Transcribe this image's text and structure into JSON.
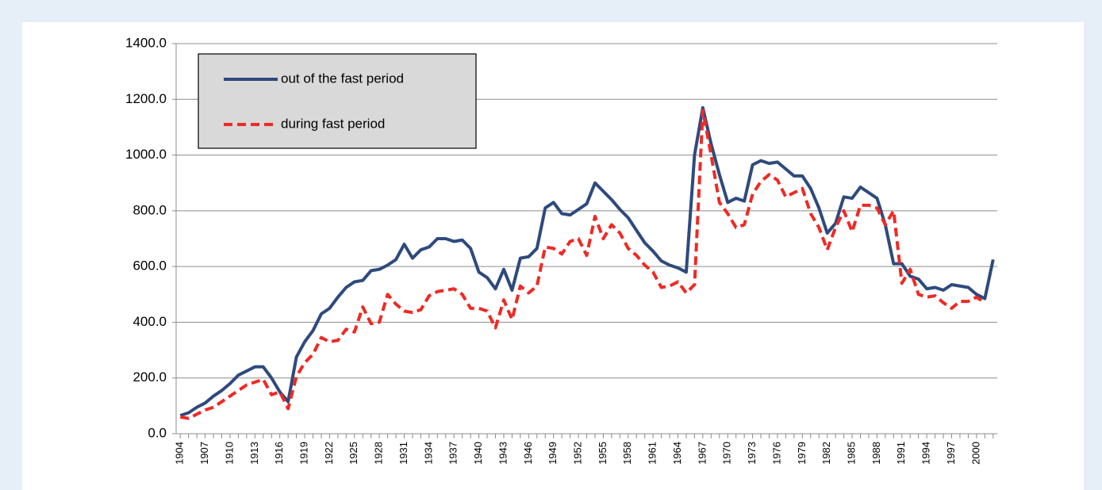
{
  "chart_data": {
    "type": "line",
    "x": [
      1904,
      1905,
      1906,
      1907,
      1908,
      1909,
      1910,
      1911,
      1912,
      1913,
      1914,
      1915,
      1916,
      1917,
      1918,
      1919,
      1920,
      1921,
      1922,
      1923,
      1924,
      1925,
      1926,
      1927,
      1928,
      1929,
      1930,
      1931,
      1932,
      1933,
      1934,
      1935,
      1936,
      1937,
      1938,
      1939,
      1940,
      1941,
      1942,
      1943,
      1944,
      1945,
      1946,
      1947,
      1948,
      1949,
      1950,
      1951,
      1952,
      1953,
      1954,
      1955,
      1956,
      1957,
      1958,
      1959,
      1960,
      1961,
      1962,
      1963,
      1964,
      1965,
      1966,
      1967,
      1968,
      1969,
      1970,
      1971,
      1972,
      1973,
      1974,
      1975,
      1976,
      1977,
      1978,
      1979,
      1980,
      1981,
      1982,
      1983,
      1984,
      1985,
      1986,
      1987,
      1988,
      1989,
      1990,
      1991,
      1992,
      1993,
      1994,
      1995,
      1996,
      1997,
      1998,
      1999,
      2000,
      2001,
      2002
    ],
    "series": [
      {
        "name": "out of the fast period",
        "color": "#2e4a7d",
        "dash": "solid",
        "values": [
          65,
          75,
          95,
          110,
          135,
          155,
          180,
          210,
          225,
          240,
          240,
          200,
          150,
          115,
          275,
          330,
          370,
          430,
          450,
          490,
          525,
          545,
          550,
          585,
          590,
          605,
          625,
          680,
          630,
          660,
          670,
          700,
          700,
          690,
          695,
          665,
          580,
          560,
          520,
          590,
          515,
          630,
          635,
          665,
          810,
          830,
          790,
          785,
          805,
          825,
          900,
          870,
          840,
          805,
          775,
          730,
          685,
          655,
          620,
          605,
          595,
          580,
          1000,
          1170,
          1040,
          930,
          830,
          845,
          835,
          965,
          980,
          970,
          975,
          950,
          925,
          925,
          880,
          810,
          720,
          755,
          850,
          845,
          885,
          865,
          845,
          750,
          610,
          610,
          565,
          555,
          520,
          525,
          515,
          535,
          530,
          525,
          500,
          485,
          625
        ]
      },
      {
        "name": "during fast period",
        "color": "#ee2a24",
        "dash": "dashed",
        "values": [
          60,
          55,
          70,
          85,
          95,
          115,
          135,
          155,
          175,
          185,
          195,
          140,
          150,
          90,
          205,
          255,
          285,
          345,
          330,
          335,
          375,
          365,
          455,
          395,
          400,
          500,
          465,
          440,
          435,
          445,
          495,
          510,
          515,
          520,
          500,
          450,
          450,
          440,
          380,
          480,
          410,
          530,
          505,
          530,
          670,
          665,
          645,
          690,
          700,
          640,
          780,
          700,
          750,
          720,
          665,
          640,
          605,
          580,
          525,
          530,
          545,
          505,
          535,
          1160,
          1000,
          830,
          790,
          740,
          750,
          860,
          905,
          930,
          910,
          850,
          865,
          880,
          790,
          740,
          660,
          740,
          800,
          725,
          820,
          820,
          810,
          750,
          800,
          540,
          590,
          500,
          490,
          495,
          470,
          450,
          475,
          475,
          490,
          470,
          null
        ]
      }
    ],
    "xlim": [
      1903.5,
      2002.5
    ],
    "xticks": [
      1904,
      1907,
      1910,
      1913,
      1916,
      1919,
      1922,
      1925,
      1928,
      1931,
      1934,
      1937,
      1940,
      1943,
      1946,
      1949,
      1952,
      1955,
      1958,
      1961,
      1964,
      1967,
      1970,
      1973,
      1976,
      1979,
      1982,
      1985,
      1988,
      1991,
      1994,
      1997,
      2000
    ],
    "ylim": [
      0,
      1400
    ],
    "yticks": [
      {
        "value": 0,
        "label": "0.0"
      },
      {
        "value": 200,
        "label": "200.0"
      },
      {
        "value": 400,
        "label": "400.0"
      },
      {
        "value": 600,
        "label": "600.0"
      },
      {
        "value": 800,
        "label": "800.0"
      },
      {
        "value": 1000,
        "label": "1000.0"
      },
      {
        "value": 1200,
        "label": "1200.0"
      },
      {
        "value": 1400,
        "label": "1400.0"
      }
    ],
    "grid": true,
    "legend": "top-left"
  }
}
